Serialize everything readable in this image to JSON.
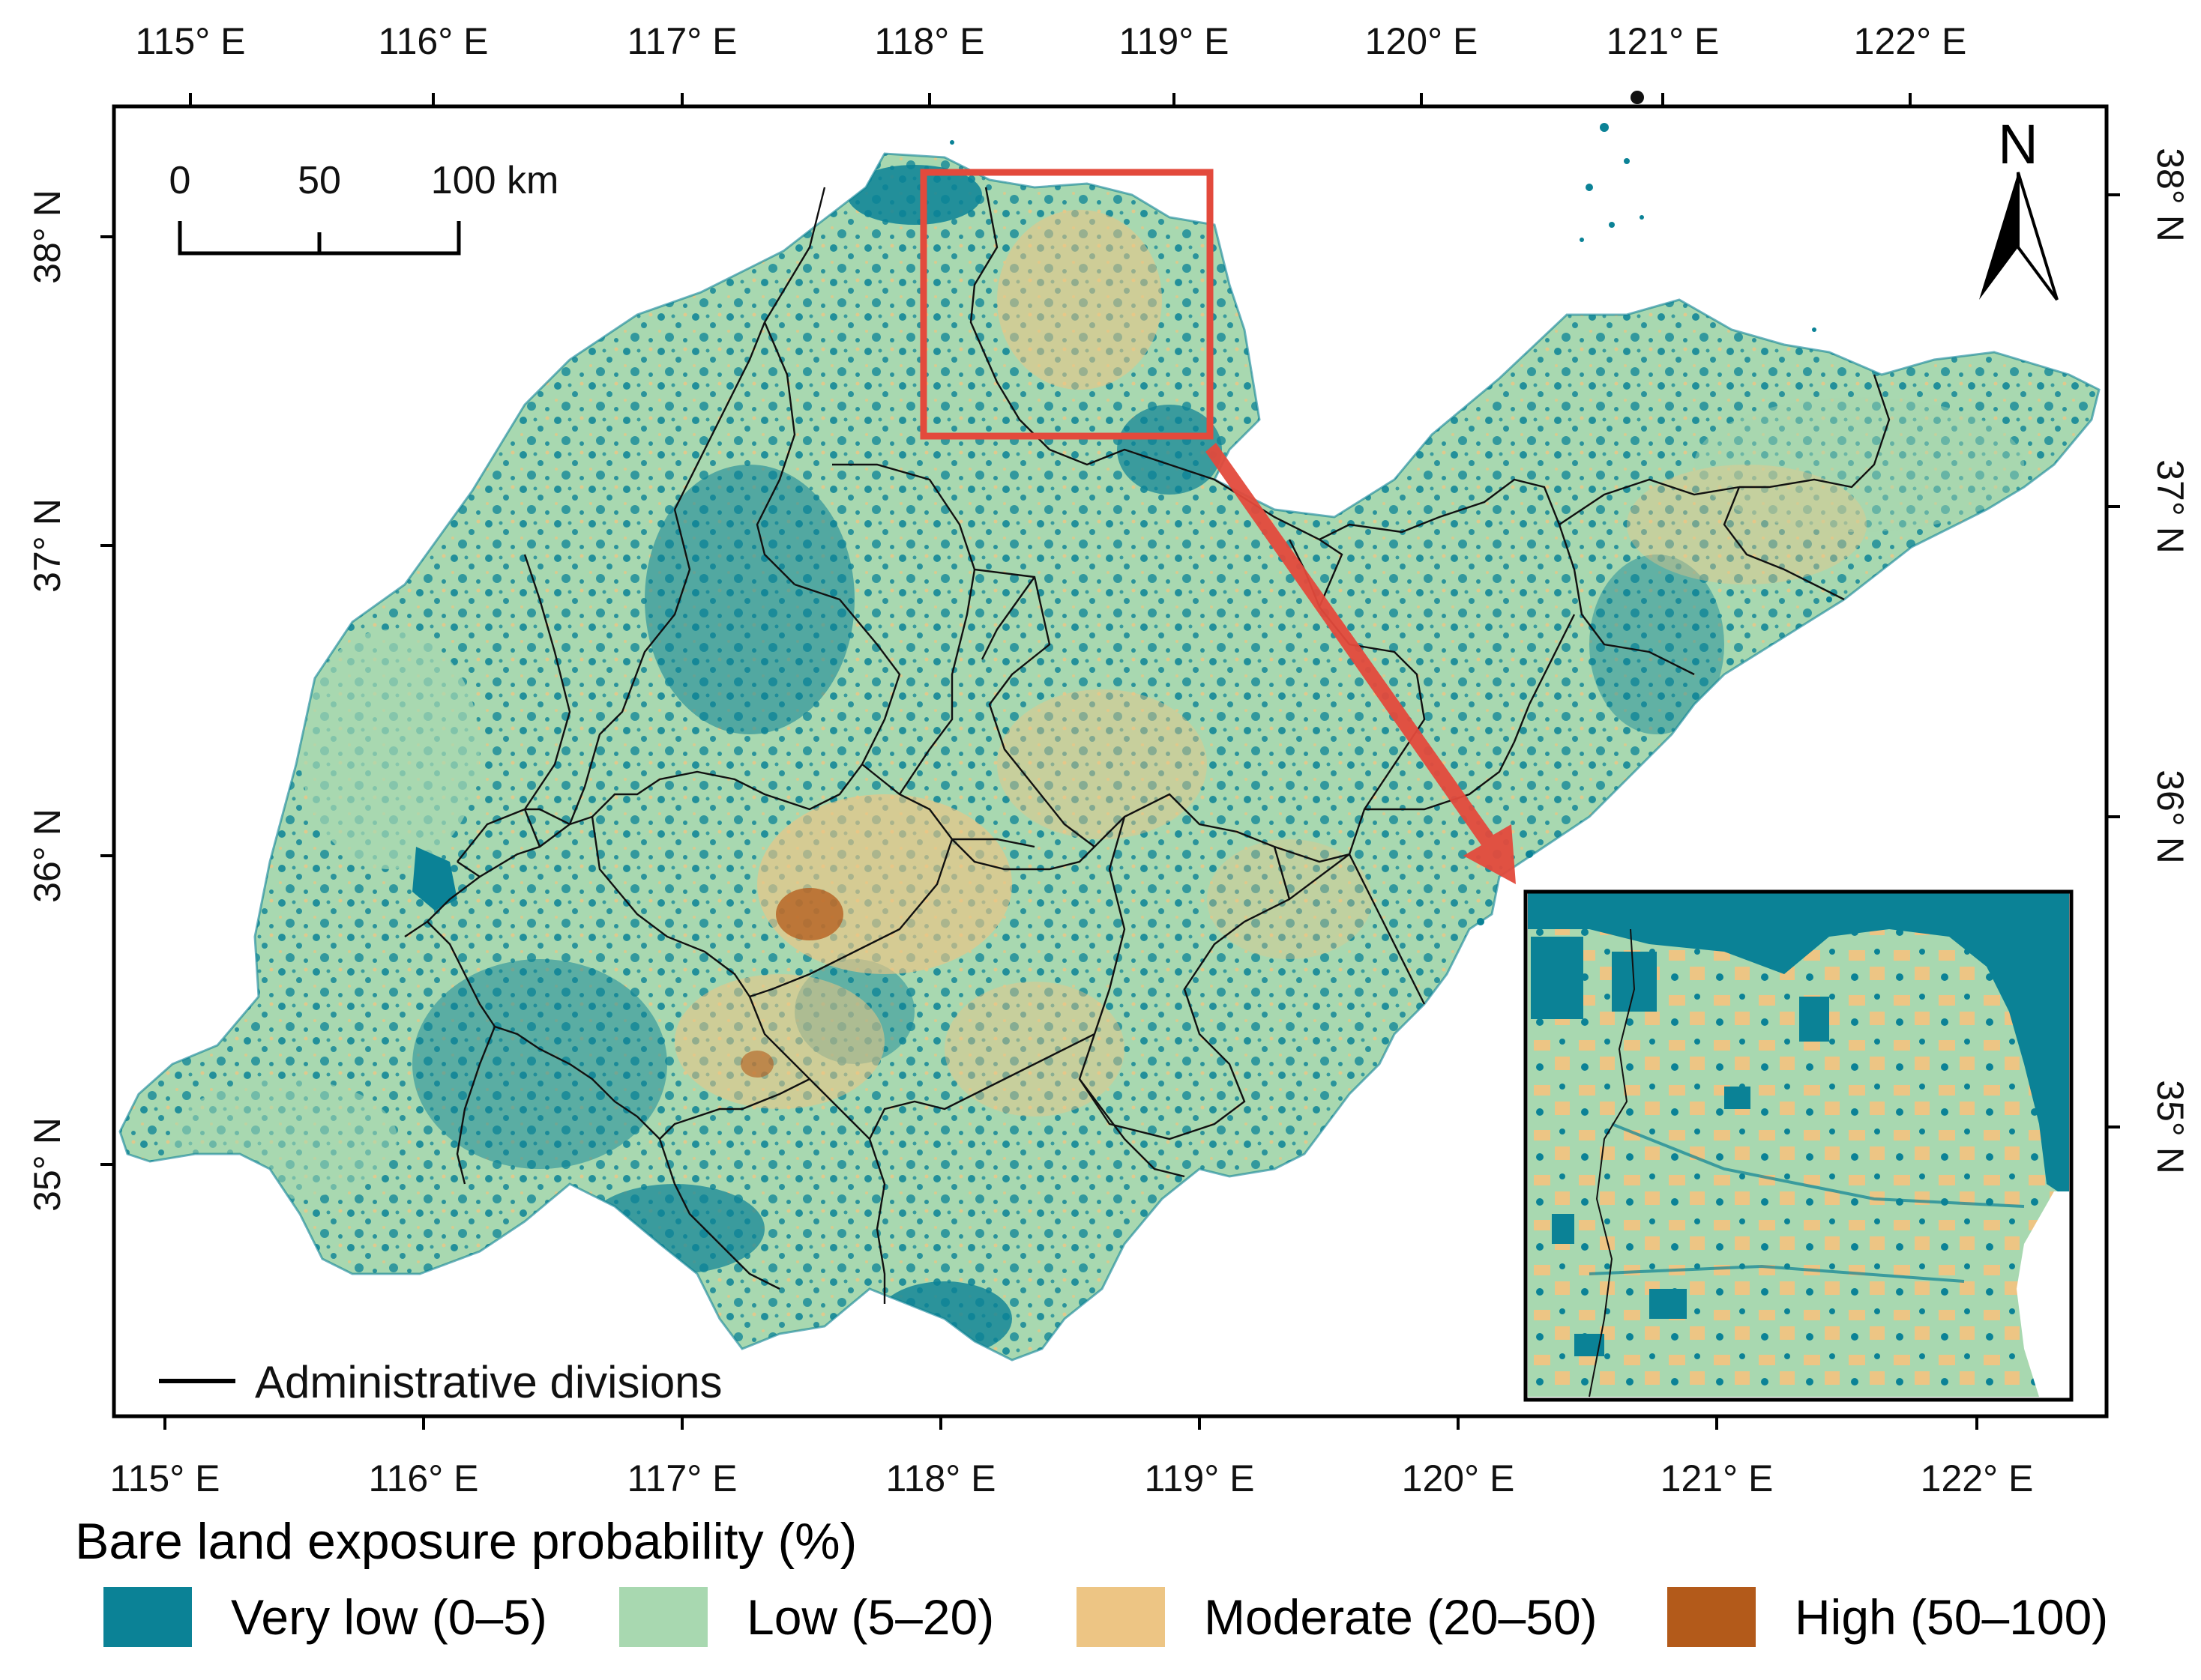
{
  "map": {
    "top_axis_labels": [
      "115° E",
      "116° E",
      "117° E",
      "118° E",
      "119° E",
      "120° E",
      "121° E",
      "122° E"
    ],
    "bottom_axis_labels": [
      "115° E",
      "116° E",
      "117° E",
      "118° E",
      "119° E",
      "120° E",
      "121° E",
      "122° E"
    ],
    "left_axis_labels": [
      "38° N",
      "37° N",
      "36° N",
      "35° N"
    ],
    "right_axis_labels": [
      "38° N",
      "37° N",
      "36° N",
      "35° N"
    ],
    "scale_bar": {
      "labels": [
        "0",
        "50",
        "100 km"
      ]
    },
    "north_arrow": {
      "label": "N",
      "icon": "north-arrow-icon"
    },
    "admin_legend": {
      "label": "Administrative divisions"
    },
    "inset": {
      "frame_color": "#e34a3c",
      "arrow_color": "#e34a3c"
    }
  },
  "legend": {
    "title": "Bare land exposure probability (%)",
    "items": [
      {
        "label": "Very low (0–5)",
        "color": "#0b8296"
      },
      {
        "label": "Low (5–20)",
        "color": "#a8d8b0"
      },
      {
        "label": "Moderate (20–50)",
        "color": "#edc584"
      },
      {
        "label": "High (50–100)",
        "color": "#b35a1a"
      }
    ]
  }
}
